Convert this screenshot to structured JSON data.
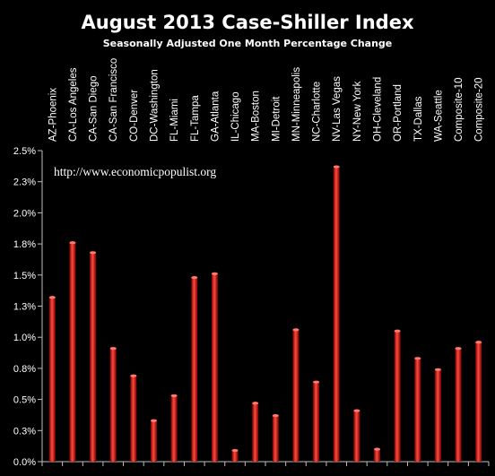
{
  "chart_data": {
    "type": "bar",
    "title": "August 2013 Case-Shiller Index",
    "subtitle": "Seasonally Adjusted One Month Percentage Change",
    "annotation": "http://www.economicpopulist.org",
    "categories": [
      "AZ-Phoenix",
      "CA-Los Angeles",
      "CA-San Diego",
      "CA-San Francisco",
      "CO-Denver",
      "DC-Washington",
      "FL-Miami",
      "FL-Tampa",
      "GA-Atlanta",
      "IL-Chicago",
      "MA-Boston",
      "MI-Detroit",
      "MN-Minneapolis",
      "NC-Charlotte",
      "NV-Las Vegas",
      "NY-New York",
      "OH-Cleveland",
      "OR-Portland",
      "TX-Dallas",
      "WA-Seattle",
      "Composite-10",
      "Composite-20"
    ],
    "values": [
      1.32,
      1.76,
      1.68,
      0.91,
      0.69,
      0.33,
      0.53,
      1.48,
      1.51,
      0.09,
      0.47,
      0.37,
      1.06,
      0.64,
      2.37,
      0.41,
      0.1,
      1.05,
      0.83,
      0.74,
      0.91,
      0.96
    ],
    "ylim": [
      0,
      2.5
    ],
    "yticks": [
      "0.0%",
      "0.3%",
      "0.5%",
      "0.8%",
      "1.0%",
      "1.3%",
      "1.5%",
      "1.8%",
      "2.0%",
      "2.3%",
      "2.5%"
    ],
    "grid": false,
    "colors": {
      "background": "#000000",
      "bar_light": "#ff4a3d",
      "bar_dark": "#7a0000",
      "text": "#ffffff",
      "axis": "#bfbfbf"
    }
  }
}
